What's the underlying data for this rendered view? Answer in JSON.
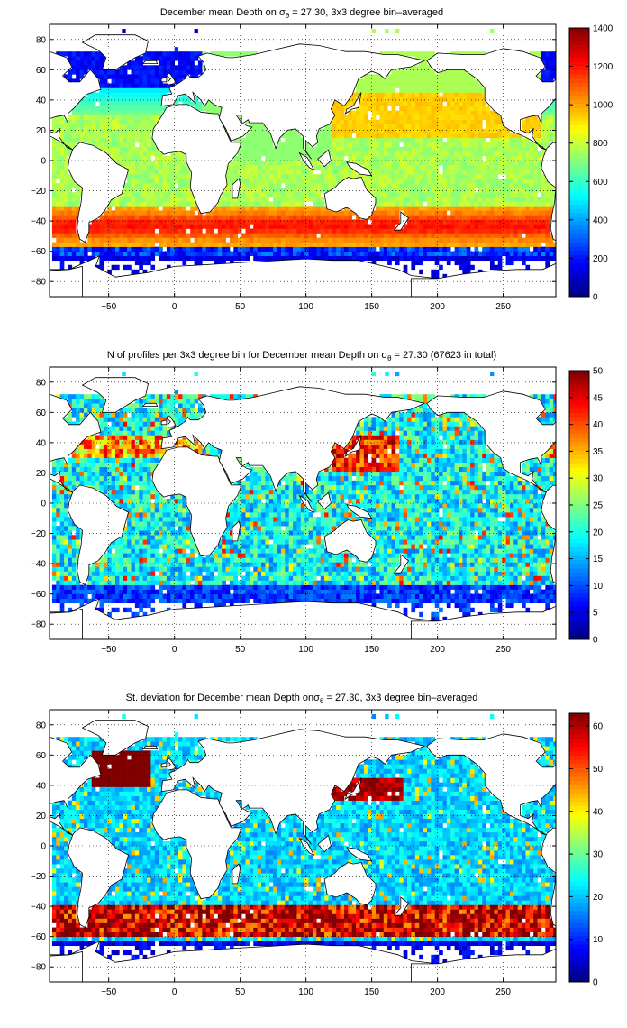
{
  "colormap": "jet",
  "chart_data": [
    {
      "type": "heatmap",
      "title_prefix": "December mean Depth on ",
      "title_sigma": "σ",
      "title_sub": "θ",
      "title_suffix": " = 27.30, 3x3 degree bin–averaged",
      "xlim": [
        -95,
        290
      ],
      "ylim": [
        -90,
        90
      ],
      "xticks": [
        -50,
        0,
        50,
        100,
        150,
        200,
        250
      ],
      "yticks": [
        80,
        60,
        40,
        20,
        0,
        -20,
        -40,
        -60,
        -80
      ],
      "grid": "dotted",
      "colorbar": {
        "min": 0,
        "max": 1400,
        "ticks": [
          0,
          200,
          400,
          600,
          800,
          1000,
          1200,
          1400
        ]
      },
      "field": "depth"
    },
    {
      "type": "heatmap",
      "title_prefix": "N of profiles per 3x3 degree bin for December mean Depth on ",
      "title_sigma": "σ",
      "title_sub": "θ",
      "title_suffix": " = 27.30 (67623 in total)",
      "xlim": [
        -95,
        290
      ],
      "ylim": [
        -90,
        90
      ],
      "xticks": [
        -50,
        0,
        50,
        100,
        150,
        200,
        250
      ],
      "yticks": [
        80,
        60,
        40,
        20,
        0,
        -20,
        -40,
        -60,
        -80
      ],
      "grid": "dotted",
      "colorbar": {
        "min": 0,
        "max": 50,
        "ticks": [
          0,
          5,
          10,
          15,
          20,
          25,
          30,
          35,
          40,
          45,
          50
        ]
      },
      "field": "count"
    },
    {
      "type": "heatmap",
      "title_prefix": "St. deviation for December mean Depth on",
      "title_sigma": "σ",
      "title_sub": "θ",
      "title_suffix": " = 27.30, 3x3 degree bin–averaged",
      "xlim": [
        -95,
        290
      ],
      "ylim": [
        -90,
        90
      ],
      "xticks": [
        -50,
        0,
        50,
        100,
        150,
        200,
        250
      ],
      "yticks": [
        80,
        60,
        40,
        20,
        0,
        -20,
        -40,
        -60,
        -80
      ],
      "grid": "dotted",
      "colorbar": {
        "min": 0,
        "max": 63,
        "ticks": [
          0,
          10,
          20,
          30,
          40,
          50,
          60
        ]
      },
      "field": "std"
    }
  ]
}
